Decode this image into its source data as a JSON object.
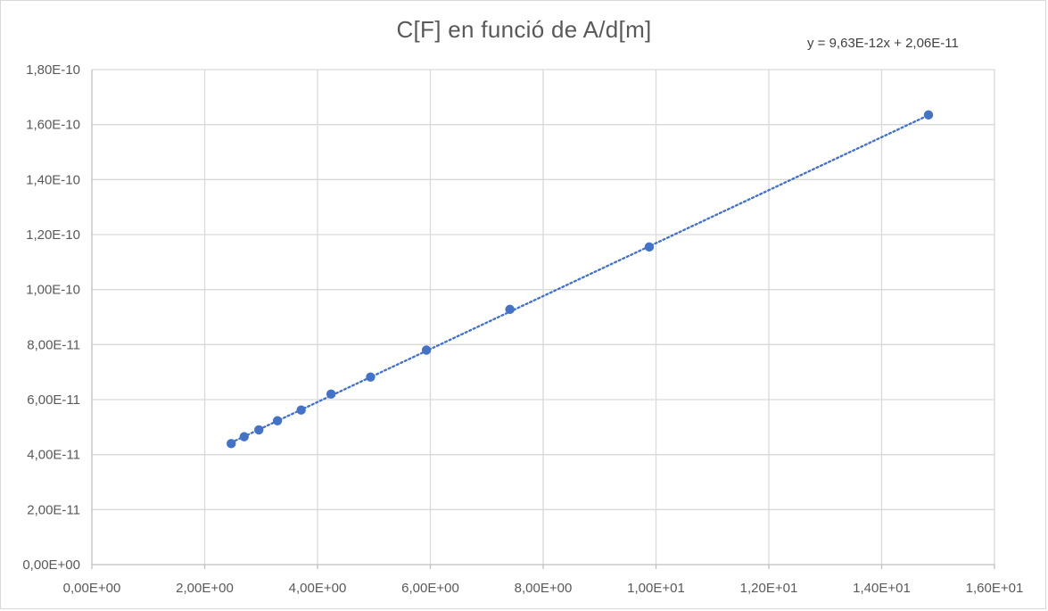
{
  "chart_data": {
    "type": "scatter",
    "title": "C[F] en funció de A/d[m]",
    "xlabel": "",
    "ylabel": "",
    "xlim": [
      0,
      16
    ],
    "ylim": [
      0,
      1.8e-10
    ],
    "x_ticks": [
      0,
      2,
      4,
      6,
      8,
      10,
      12,
      14,
      16
    ],
    "x_tick_labels": [
      "0,00E+00",
      "2,00E+00",
      "4,00E+00",
      "6,00E+00",
      "8,00E+00",
      "1,00E+01",
      "1,20E+01",
      "1,40E+01",
      "1,60E+01"
    ],
    "y_ticks": [
      0,
      2e-11,
      4e-11,
      6e-11,
      8e-11,
      1e-10,
      1.2e-10,
      1.4e-10,
      1.6e-10,
      1.8e-10
    ],
    "y_tick_labels": [
      "0,00E+00",
      "2,00E-11",
      "4,00E-11",
      "6,00E-11",
      "8,00E-11",
      "1,00E-10",
      "1,20E-10",
      "1,40E-10",
      "1,60E-10",
      "1,80E-10"
    ],
    "grid": true,
    "legend": "none",
    "series": [
      {
        "x": [
          2.47,
          2.7,
          2.96,
          3.29,
          3.71,
          4.24,
          4.94,
          5.93,
          7.41,
          9.88,
          14.83
        ],
        "y": [
          4.4e-11,
          4.65e-11,
          4.9e-11,
          5.23e-11,
          5.62e-11,
          6.2e-11,
          6.82e-11,
          7.8e-11,
          9.28e-11,
          1.155e-10,
          1.635e-10
        ]
      }
    ],
    "trendline": {
      "type": "linear",
      "slope": 9.63e-12,
      "intercept": 2.06e-11,
      "equation_label": "y = 9,63E-12x + 2,06E-11",
      "style": "dotted"
    },
    "colors": {
      "marker": "#4472C4",
      "trendline": "#4472C4",
      "grid": "#d9d9d9",
      "axis": "#bfbfbf",
      "text": "#595959"
    }
  }
}
